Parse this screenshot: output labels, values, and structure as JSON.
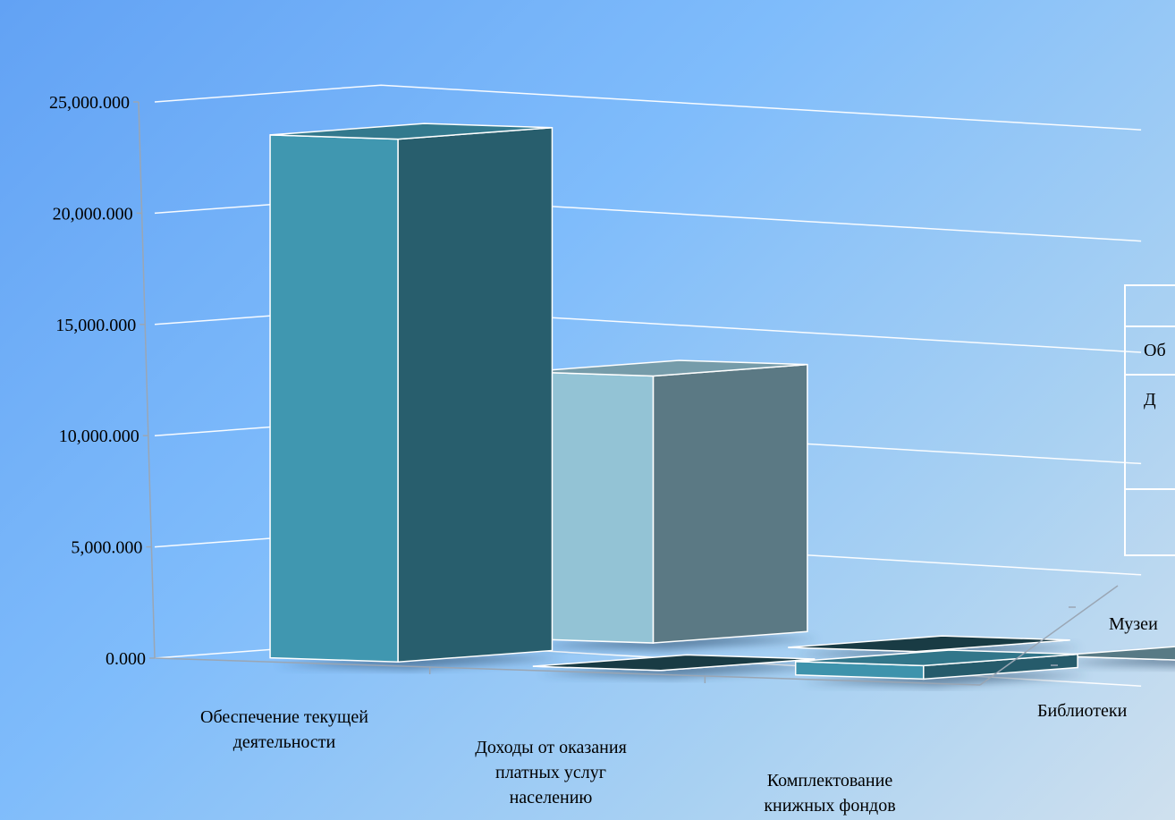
{
  "chart_data": {
    "type": "bar",
    "title": "",
    "categories": [
      "Обеспечение текущей деятельности",
      "Доходы от оказания платных услуг населению",
      "Комплектование книжных фондов"
    ],
    "category_lines": [
      [
        "Обеспечение текущей",
        "деятельности"
      ],
      [
        "Доходы от оказания",
        "платных услуг",
        "населению"
      ],
      [
        "Комплектование",
        "книжных фондов"
      ]
    ],
    "series": [
      {
        "name": "Библиотеки",
        "values": [
          23500,
          0,
          600
        ],
        "colors": [
          "#4097b0",
          "#1f4a55",
          "#3e93ac"
        ]
      },
      {
        "name": "Музеи",
        "values": [
          12000,
          0,
          0
        ],
        "colors": [
          "#93c3d5",
          "#1f4a55",
          "#6e98a6"
        ]
      }
    ],
    "yticks": [
      "0.000",
      "5,000.000",
      "10,000.000",
      "15,000.000",
      "20,000.000",
      "25,000.000"
    ],
    "ylim": [
      0,
      25000
    ],
    "grid": true,
    "legend": "none",
    "data_table": {
      "rows": [
        "",
        "Об",
        "Д",
        ""
      ]
    }
  }
}
